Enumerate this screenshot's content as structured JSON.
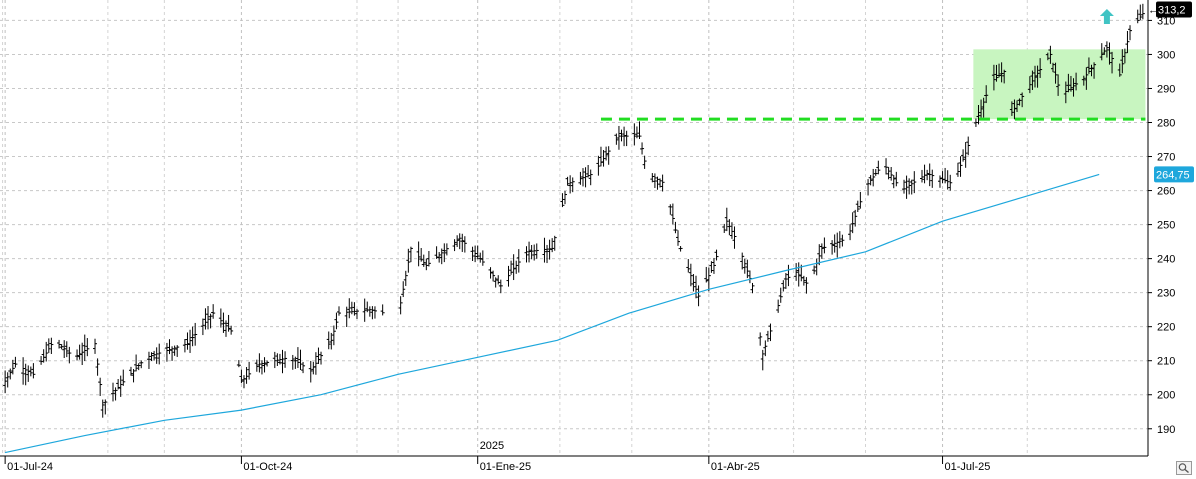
{
  "chart_data": {
    "type": "bar",
    "title": "",
    "xlabel": "",
    "ylabel": "",
    "ylim": [
      182,
      316
    ],
    "y_ticks": [
      190,
      200,
      210,
      220,
      230,
      240,
      250,
      260,
      270,
      280,
      290,
      300,
      310
    ],
    "x_ticks": [
      {
        "date": "2024-07-01",
        "label": "01-Jul-24"
      },
      {
        "date": "2024-10-01",
        "label": "01-Oct-24"
      },
      {
        "date": "2025-01-01",
        "label": "01-Ene-25"
      },
      {
        "date": "2025-04-01",
        "label": "01-Abr-25"
      },
      {
        "date": "2025-07-01",
        "label": "01-Jul-25"
      }
    ],
    "year_label": {
      "date": "2025-01-01",
      "label": "2025"
    },
    "grid": true,
    "last_price": {
      "label": "313,2",
      "value": 313.2
    },
    "moving_average": {
      "label": "264,75",
      "value": 264.75,
      "color": "#1ea7dc",
      "points": [
        [
          "2024-07-01",
          183.0
        ],
        [
          "2024-08-01",
          188.0
        ],
        [
          "2024-09-01",
          192.5
        ],
        [
          "2024-10-01",
          195.5
        ],
        [
          "2024-11-01",
          200.0
        ],
        [
          "2024-12-01",
          206.0
        ],
        [
          "2025-01-01",
          211.0
        ],
        [
          "2025-02-01",
          216.0
        ],
        [
          "2025-03-01",
          224.0
        ],
        [
          "2025-04-01",
          231.0
        ],
        [
          "2025-05-01",
          236.5
        ],
        [
          "2025-06-01",
          242.0
        ],
        [
          "2025-07-01",
          251.0
        ],
        [
          "2025-08-01",
          258.0
        ],
        [
          "2025-08-31",
          264.75
        ]
      ]
    },
    "price_keypoints": [
      [
        "2024-06-27",
        199
      ],
      [
        "2024-07-05",
        209
      ],
      [
        "2024-07-12",
        206
      ],
      [
        "2024-07-20",
        216
      ],
      [
        "2024-07-28",
        211
      ],
      [
        "2024-08-05",
        215
      ],
      [
        "2024-08-08",
        197
      ],
      [
        "2024-08-15",
        203
      ],
      [
        "2024-08-25",
        211
      ],
      [
        "2024-09-10",
        215
      ],
      [
        "2024-09-20",
        224
      ],
      [
        "2024-09-28",
        218
      ],
      [
        "2024-10-01",
        204
      ],
      [
        "2024-10-08",
        209
      ],
      [
        "2024-10-20",
        211
      ],
      [
        "2024-10-28",
        207
      ],
      [
        "2024-11-05",
        216
      ],
      [
        "2024-11-08",
        224
      ],
      [
        "2024-11-20",
        225
      ],
      [
        "2024-12-01",
        223
      ],
      [
        "2024-12-06",
        243
      ],
      [
        "2024-12-12",
        238
      ],
      [
        "2024-12-25",
        246
      ],
      [
        "2025-01-02",
        240
      ],
      [
        "2025-01-10",
        232
      ],
      [
        "2025-01-20",
        242
      ],
      [
        "2025-01-30",
        243
      ],
      [
        "2025-02-05",
        262
      ],
      [
        "2025-02-15",
        265
      ],
      [
        "2025-02-25",
        276
      ],
      [
        "2025-03-05",
        276
      ],
      [
        "2025-03-08",
        265
      ],
      [
        "2025-03-15",
        262
      ],
      [
        "2025-03-20",
        245
      ],
      [
        "2025-03-28",
        229
      ],
      [
        "2025-04-03",
        238
      ],
      [
        "2025-04-08",
        251
      ],
      [
        "2025-04-12",
        245
      ],
      [
        "2025-04-18",
        232
      ],
      [
        "2025-04-22",
        212
      ],
      [
        "2025-04-26",
        221
      ],
      [
        "2025-05-01",
        234
      ],
      [
        "2025-05-05",
        236
      ],
      [
        "2025-05-10",
        232
      ],
      [
        "2025-05-15",
        243
      ],
      [
        "2025-05-25",
        246
      ],
      [
        "2025-06-01",
        261
      ],
      [
        "2025-06-08",
        268
      ],
      [
        "2025-06-15",
        260
      ],
      [
        "2025-06-25",
        265
      ],
      [
        "2025-07-05",
        262
      ],
      [
        "2025-07-10",
        271
      ],
      [
        "2025-07-14",
        280
      ],
      [
        "2025-07-20",
        292
      ],
      [
        "2025-07-25",
        295
      ],
      [
        "2025-07-28",
        283
      ],
      [
        "2025-08-03",
        290
      ],
      [
        "2025-08-12",
        300
      ],
      [
        "2025-08-16",
        288
      ],
      [
        "2025-08-25",
        293
      ],
      [
        "2025-09-03",
        302
      ],
      [
        "2025-09-08",
        294
      ],
      [
        "2025-09-12",
        307
      ],
      [
        "2025-09-17",
        312
      ]
    ],
    "gap_dates": [
      "2024-11-28"
    ],
    "resistance": {
      "value": 281,
      "from": "2025-02-18",
      "to": "2025-09-18",
      "color": "#22dd22"
    },
    "range_box": {
      "from": "2025-07-13",
      "to": "2025-09-18",
      "y_low": 281,
      "y_high": 301.5,
      "color": "#c8f5c0"
    },
    "arrow": {
      "date": "2025-09-03",
      "value": 311,
      "color": "#40c4c4",
      "direction": "up"
    }
  }
}
